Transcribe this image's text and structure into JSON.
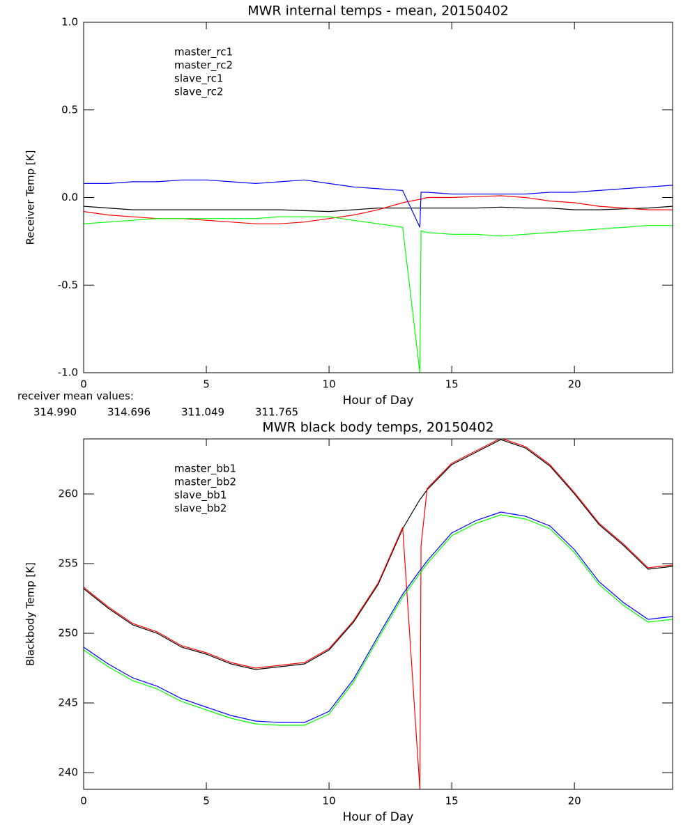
{
  "chart_data": [
    {
      "type": "line",
      "title": "MWR internal temps - mean, 20150402",
      "x_label": "Hour of Day",
      "y_label": "Receiver Temp [K]",
      "xlim": [
        0,
        24
      ],
      "xticks": [
        0,
        5,
        10,
        15,
        20
      ],
      "ylim": [
        -1,
        1
      ],
      "yticks": [
        {
          "value": -1,
          "label": "-1.0"
        },
        {
          "value": -0.5,
          "label": "-0.5"
        },
        {
          "value": 0,
          "label": "0.0"
        },
        {
          "value": 0.5,
          "label": "0.5"
        },
        {
          "value": 1,
          "label": "1.0"
        }
      ],
      "x": [
        0,
        1,
        2,
        3,
        4,
        5,
        6,
        7,
        8,
        9,
        10,
        11,
        12,
        13,
        13.7,
        13.75,
        14,
        15,
        16,
        17,
        18,
        19,
        20,
        21,
        22,
        23,
        24
      ],
      "series": [
        {
          "name": "master_rc1",
          "color": "#000000",
          "values": [
            -0.05,
            -0.06,
            -0.07,
            -0.07,
            -0.07,
            -0.07,
            -0.07,
            -0.07,
            -0.07,
            -0.075,
            -0.08,
            -0.07,
            -0.06,
            -0.06,
            -0.06,
            -0.06,
            -0.06,
            -0.06,
            -0.06,
            -0.055,
            -0.06,
            -0.06,
            -0.07,
            -0.07,
            -0.065,
            -0.06,
            -0.05
          ]
        },
        {
          "name": "master_rc2",
          "color": "#ff0000",
          "values": [
            -0.08,
            -0.1,
            -0.11,
            -0.12,
            -0.12,
            -0.13,
            -0.14,
            -0.15,
            -0.15,
            -0.14,
            -0.12,
            -0.1,
            -0.07,
            -0.03,
            -0.01,
            -0.01,
            0,
            0,
            0.005,
            0.01,
            0,
            -0.02,
            -0.03,
            -0.05,
            -0.06,
            -0.07,
            -0.07
          ]
        },
        {
          "name": "slave_rc1",
          "color": "#0000ff",
          "values": [
            0.08,
            0.08,
            0.09,
            0.09,
            0.1,
            0.1,
            0.09,
            0.08,
            0.09,
            0.1,
            0.08,
            0.06,
            0.05,
            0.04,
            -0.17,
            0.03,
            0.03,
            0.02,
            0.02,
            0.02,
            0.02,
            0.03,
            0.03,
            0.04,
            0.05,
            0.06,
            0.07
          ]
        },
        {
          "name": "slave_rc2",
          "color": "#00ff00",
          "values": [
            -0.15,
            -0.14,
            -0.13,
            -0.12,
            -0.12,
            -0.12,
            -0.12,
            -0.12,
            -0.11,
            -0.11,
            -0.11,
            -0.13,
            -0.15,
            -0.17,
            -1,
            -0.19,
            -0.2,
            -0.21,
            -0.21,
            -0.22,
            -0.21,
            -0.2,
            -0.19,
            -0.18,
            -0.17,
            -0.16,
            -0.16
          ]
        }
      ],
      "receiver_means": {
        "label": "receiver mean values:",
        "values": [
          314.99,
          314.696,
          311.049,
          311.765
        ],
        "value_labels": [
          "314.990",
          "314.696",
          "311.049",
          "311.765"
        ]
      }
    },
    {
      "type": "line",
      "title": "MWR black body temps, 20150402",
      "x_label": "Hour of Day",
      "y_label": "Blackbody Temp [K]",
      "xlim": [
        0,
        24
      ],
      "xticks": [
        0,
        5,
        10,
        15,
        20
      ],
      "ylim": [
        238.8,
        263.95
      ],
      "yticks": [
        240,
        245,
        250,
        255,
        260
      ],
      "x": [
        0,
        1,
        2,
        3,
        4,
        5,
        6,
        7,
        8,
        9,
        10,
        11,
        12,
        13,
        13.7,
        13.75,
        14,
        15,
        16,
        17,
        18,
        19,
        20,
        21,
        22,
        23,
        24
      ],
      "series": [
        {
          "name": "master_bb1",
          "color": "#000000",
          "values": [
            253.2,
            251.8,
            250.6,
            250.0,
            249.0,
            248.5,
            247.8,
            247.4,
            247.6,
            247.8,
            248.8,
            250.8,
            253.5,
            257.5,
            259.6,
            259.7,
            260.3,
            262.1,
            263.0,
            263.9,
            263.3,
            262.0,
            260.0,
            257.8,
            256.3,
            254.6,
            254.8
          ]
        },
        {
          "name": "master_bb2",
          "color": "#ff0000",
          "values": [
            253.3,
            251.9,
            250.7,
            250.1,
            249.1,
            248.6,
            247.9,
            247.5,
            247.7,
            247.9,
            248.9,
            250.9,
            253.6,
            257.6,
            238.8,
            256.3,
            260.4,
            262.2,
            263.1,
            264.0,
            263.4,
            262.1,
            260.1,
            257.9,
            256.4,
            254.7,
            254.9
          ]
        },
        {
          "name": "slave_bb1",
          "color": "#0000ff",
          "values": [
            249.0,
            247.8,
            246.8,
            246.2,
            245.3,
            244.7,
            244.1,
            243.7,
            243.6,
            243.6,
            244.4,
            246.7,
            249.8,
            252.8,
            254.5,
            254.6,
            255.2,
            257.2,
            258.1,
            258.7,
            258.4,
            257.7,
            256.0,
            253.7,
            252.2,
            251.0,
            251.2
          ]
        },
        {
          "name": "slave_bb2",
          "color": "#00ff00",
          "values": [
            248.8,
            247.6,
            246.6,
            246.0,
            245.1,
            244.5,
            243.9,
            243.5,
            243.4,
            243.4,
            244.2,
            246.5,
            249.6,
            252.6,
            254.3,
            254.4,
            255.0,
            257.0,
            257.9,
            258.5,
            258.2,
            257.5,
            255.8,
            253.5,
            252.0,
            250.8,
            251.0
          ]
        }
      ]
    }
  ]
}
